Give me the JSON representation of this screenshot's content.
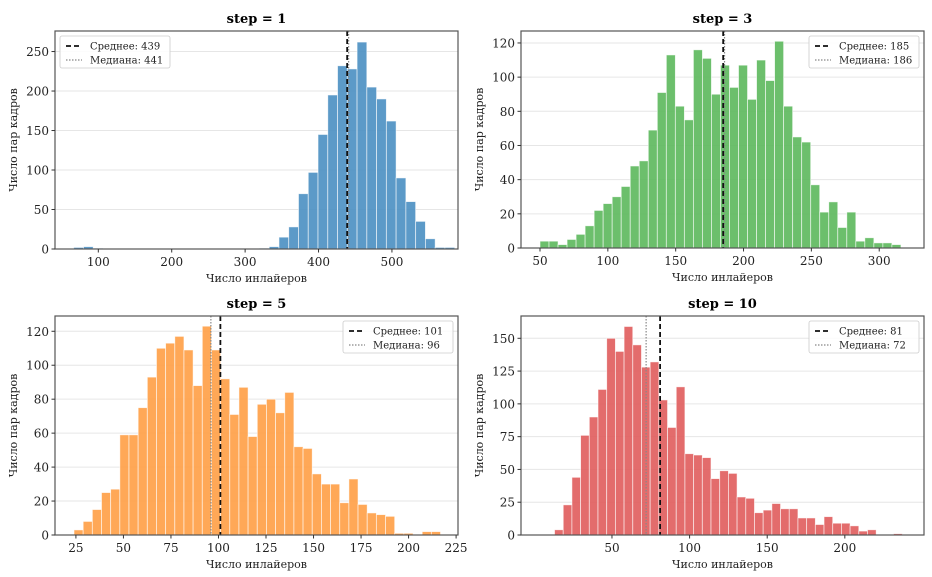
{
  "chart_data": [
    {
      "type": "bar",
      "title": "step = 1",
      "xlabel": "Число инлайеров",
      "ylabel": "Число пар кадров",
      "color": "#4a8fc2",
      "xlim": [
        41,
        590
      ],
      "ylim": [
        0,
        276
      ],
      "xticks": [
        100,
        200,
        300,
        400,
        500
      ],
      "yticks": [
        0,
        50,
        100,
        150,
        200,
        250
      ],
      "bin_width": 13.3,
      "bins": [
        {
          "start": 66.5,
          "values": [
            2,
            3,
            1
          ]
        },
        {
          "start": 319.5,
          "values": [
            1,
            3,
            15,
            28,
            70,
            97,
            145,
            195,
            232,
            228,
            262,
            205,
            190,
            162,
            90,
            60,
            35,
            13,
            2,
            2
          ]
        }
      ],
      "mean": 439,
      "median": 441,
      "legend": {
        "position": "upper left",
        "mean_label": "Среднее: 439",
        "median_label": "Медиана: 441"
      }
    },
    {
      "type": "bar",
      "title": "step = 3",
      "xlabel": "Число инлайеров",
      "ylabel": "Число пар кадров",
      "color": "#5cb85c",
      "xlim": [
        36,
        333
      ],
      "ylim": [
        0,
        127
      ],
      "xticks": [
        50,
        100,
        150,
        200,
        250,
        300
      ],
      "yticks": [
        0,
        20,
        40,
        60,
        80,
        100,
        120
      ],
      "bin_width": 6.65,
      "bins": [
        {
          "start": 50,
          "values": [
            4,
            4,
            2,
            5,
            8,
            13,
            22,
            26,
            30,
            36,
            48,
            51,
            69,
            91,
            113,
            83,
            75,
            116,
            111,
            90,
            107,
            94,
            107,
            87,
            110,
            98,
            121,
            83,
            65,
            62,
            37,
            21,
            27,
            12,
            21,
            4,
            6,
            3,
            3,
            2
          ]
        }
      ],
      "mean": 185,
      "median": 186,
      "legend": {
        "position": "upper right",
        "mean_label": "Среднее: 185",
        "median_label": "Медиана: 186"
      }
    },
    {
      "type": "bar",
      "title": "step = 5",
      "xlabel": "Число инлайеров",
      "ylabel": "Число пар кадров",
      "color": "#ff9f45",
      "xlim": [
        14,
        226
      ],
      "ylim": [
        0,
        129
      ],
      "xticks": [
        25,
        50,
        75,
        100,
        125,
        150,
        175,
        200,
        225
      ],
      "yticks": [
        0,
        20,
        40,
        60,
        80,
        100,
        120
      ],
      "bin_width": 4.82,
      "bins": [
        {
          "start": 24,
          "values": [
            3,
            8,
            15,
            25,
            27,
            59,
            59,
            75,
            93,
            110,
            113,
            117,
            109,
            88,
            123,
            109,
            92,
            71,
            87,
            58,
            77,
            80,
            72,
            84,
            52,
            51,
            36,
            30,
            30,
            19,
            33,
            18,
            13,
            12,
            11,
            1,
            1,
            0,
            2,
            2
          ]
        }
      ],
      "mean": 101,
      "median": 96,
      "legend": {
        "position": "upper right",
        "mean_label": "Среднее: 101",
        "median_label": "Медиана: 96"
      }
    },
    {
      "type": "bar",
      "title": "step = 10",
      "xlabel": "Число инлайеров",
      "ylabel": "Число пар кадров",
      "color": "#e05c5c",
      "xlim": [
        -8.6,
        251
      ],
      "ylim": [
        0,
        167
      ],
      "xticks": [
        50,
        100,
        150,
        200
      ],
      "yticks": [
        0,
        25,
        50,
        75,
        100,
        125,
        150
      ],
      "bin_width": 5.6,
      "bins": [
        {
          "start": 13,
          "values": [
            4,
            23,
            44,
            76,
            90,
            111,
            150,
            140,
            159,
            145,
            128,
            132,
            103,
            82,
            113,
            62,
            61,
            59,
            43,
            49,
            47,
            29,
            28,
            17,
            19,
            24,
            20,
            20,
            13,
            13,
            8,
            14,
            9,
            9,
            7,
            3,
            4,
            0,
            0,
            1
          ]
        }
      ],
      "mean": 81,
      "median": 72,
      "legend": {
        "position": "upper right",
        "mean_label": "Среднее: 81",
        "median_label": "Медиана: 72"
      }
    }
  ]
}
